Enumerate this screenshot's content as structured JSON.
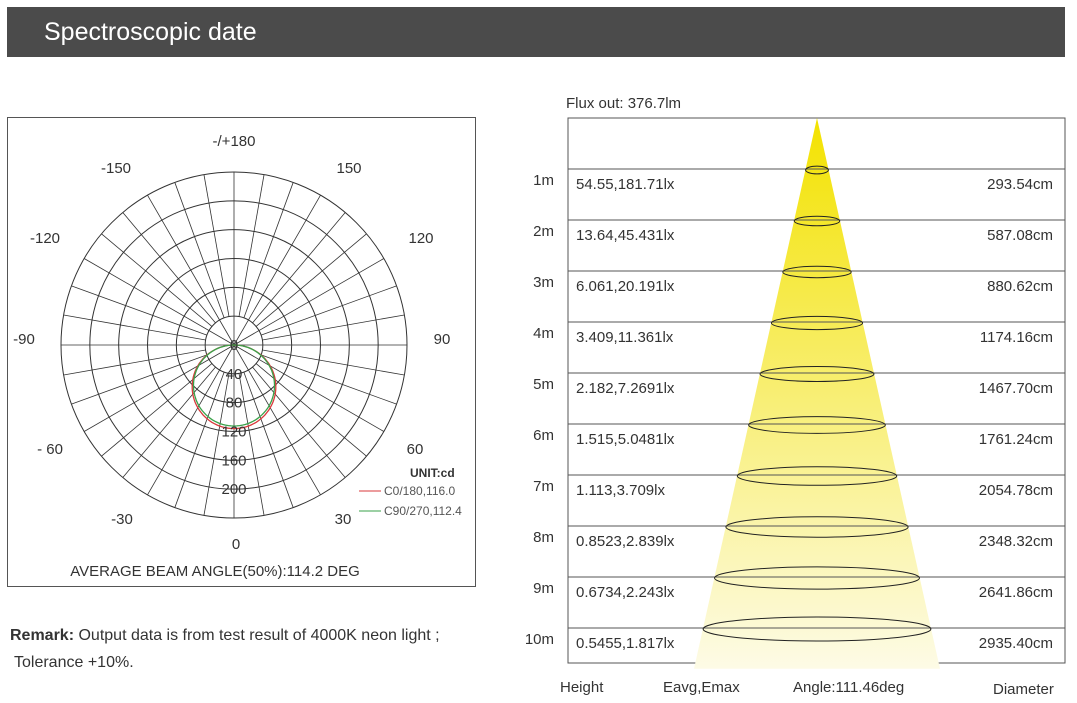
{
  "header": {
    "title": "Spectroscopic date"
  },
  "polar": {
    "angle_labels": {
      "a180": "-/+180",
      "a150n": "-150",
      "a150": "150",
      "a120n": "-120",
      "a120": "120",
      "a90n": "-90",
      "a90": "90",
      "a60n": "- 60",
      "a60": "60",
      "a30n": "-30",
      "a30": "30",
      "a0": "0"
    },
    "radial_labels": [
      "0",
      "40",
      "80",
      "120",
      "160",
      "200"
    ],
    "unit": "UNIT:cd",
    "beam_angle": "AVERAGE BEAM ANGLE(50%):114.2 DEG",
    "colors": {
      "c0": "#d9393b",
      "c90": "#3aa24a"
    }
  },
  "chart_data": [
    {
      "type": "polar",
      "title": "",
      "radial_ticks": [
        0,
        40,
        80,
        120,
        160,
        200
      ],
      "rmax": 240,
      "unit": "UNIT:cd",
      "series": [
        {
          "name": "C0/180,116.0",
          "peak": 116.0,
          "shape": "cos"
        },
        {
          "name": "C90/270,112.4",
          "peak": 112.4,
          "shape": "cos"
        }
      ],
      "annotation": "AVERAGE BEAM ANGLE(50%):114.2 DEG"
    },
    {
      "type": "table",
      "flux": "Flux out: 376.7lm",
      "columns": [
        "Height",
        "Eavg,Emax",
        "Angle:111.46deg",
        "Diameter"
      ],
      "rows": [
        {
          "height": "1m",
          "lux": "54.55,181.71lx",
          "diameter": "293.54cm"
        },
        {
          "height": "2m",
          "lux": "13.64,45.431lx",
          "diameter": "587.08cm"
        },
        {
          "height": "3m",
          "lux": "6.061,20.191lx",
          "diameter": "880.62cm"
        },
        {
          "height": "4m",
          "lux": "3.409,11.361lx",
          "diameter": "1174.16cm"
        },
        {
          "height": "5m",
          "lux": "2.182,7.2691lx",
          "diameter": "1467.70cm"
        },
        {
          "height": "6m",
          "lux": "1.515,5.0481lx",
          "diameter": "1761.24cm"
        },
        {
          "height": "7m",
          "lux": "1.113,3.709lx",
          "diameter": "2054.78cm"
        },
        {
          "height": "8m",
          "lux": "0.8523,2.839lx",
          "diameter": "2348.32cm"
        },
        {
          "height": "9m",
          "lux": "0.6734,2.243lx",
          "diameter": "2641.86cm"
        },
        {
          "height": "10m",
          "lux": "0.5455,1.817lx",
          "diameter": "2935.40cm"
        }
      ]
    }
  ],
  "remark": {
    "label": "Remark:",
    "text": " Output data is from test result of 4000K neon light ;",
    "line2": "Tolerance +10%."
  },
  "cone": {
    "fill_top": "#f3e200",
    "fill_bottom": "#fdfbe6"
  }
}
